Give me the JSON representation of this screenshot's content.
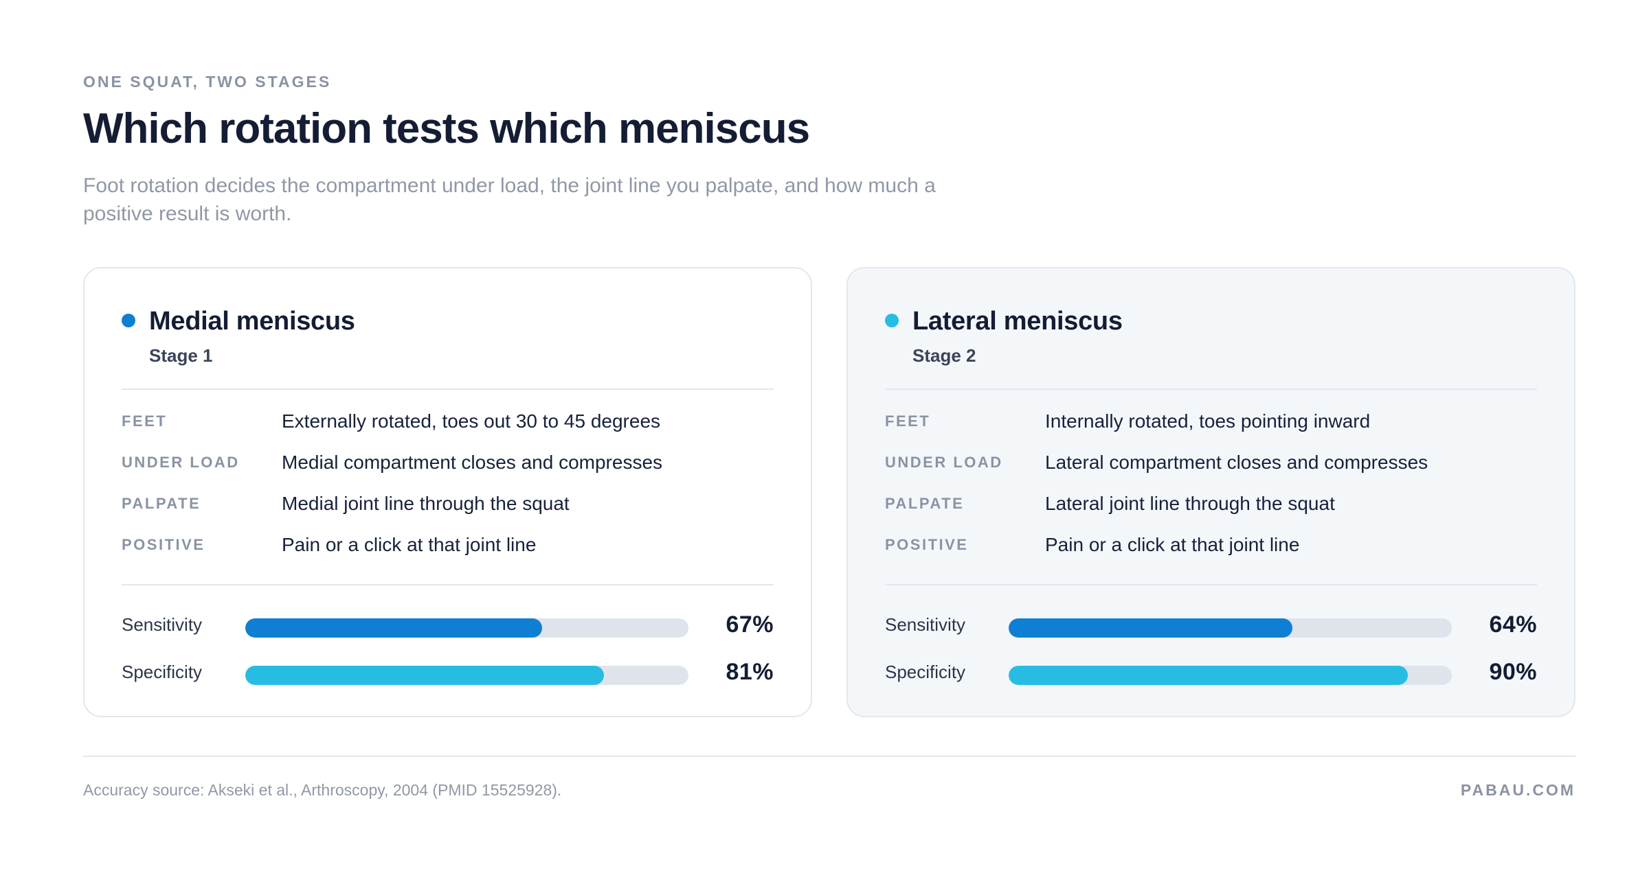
{
  "header": {
    "eyebrow": "ONE SQUAT, TWO STAGES",
    "title": "Which rotation tests which meniscus",
    "subtitle": "Foot rotation decides the compartment under load, the joint line you palpate, and how much a positive result is worth."
  },
  "colors": {
    "medial_accent": "#0f7fd4",
    "lateral_accent": "#27bde3",
    "sensitivity_bar": "#0f7fd4",
    "specificity_bar": "#27bde3",
    "track": "#dfe3ec"
  },
  "cards": [
    {
      "title": "Medial meniscus",
      "stage": "Stage 1",
      "dot_color": "#0f7fd4",
      "rows": [
        {
          "label": "FEET",
          "value": "Externally rotated, toes out 30 to 45 degrees"
        },
        {
          "label": "UNDER LOAD",
          "value": "Medial compartment closes and compresses"
        },
        {
          "label": "PALPATE",
          "value": "Medial joint line through the squat"
        },
        {
          "label": "POSITIVE",
          "value": "Pain or a click at that joint line"
        }
      ],
      "metrics": [
        {
          "label": "Sensitivity",
          "value": "67%",
          "percent": 67,
          "color": "#0f7fd4"
        },
        {
          "label": "Specificity",
          "value": "81%",
          "percent": 81,
          "color": "#27bde3"
        }
      ]
    },
    {
      "title": "Lateral meniscus",
      "stage": "Stage 2",
      "dot_color": "#27bde3",
      "rows": [
        {
          "label": "FEET",
          "value": "Internally rotated, toes pointing inward"
        },
        {
          "label": "UNDER LOAD",
          "value": "Lateral compartment closes and compresses"
        },
        {
          "label": "PALPATE",
          "value": "Lateral joint line through the squat"
        },
        {
          "label": "POSITIVE",
          "value": "Pain or a click at that joint line"
        }
      ],
      "metrics": [
        {
          "label": "Sensitivity",
          "value": "64%",
          "percent": 64,
          "color": "#0f7fd4"
        },
        {
          "label": "Specificity",
          "value": "90%",
          "percent": 90,
          "color": "#27bde3"
        }
      ]
    }
  ],
  "footer": {
    "source": "Accuracy source: Akseki et al., Arthroscopy, 2004 (PMID 15525928).",
    "brand": "PABAU.COM"
  }
}
